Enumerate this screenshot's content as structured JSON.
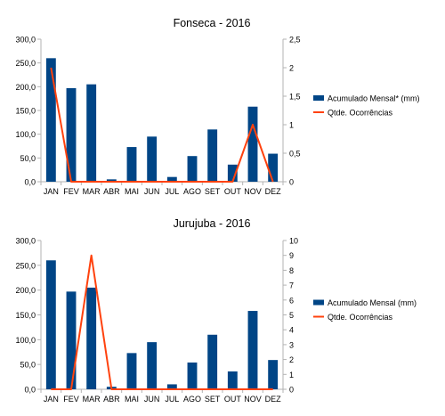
{
  "colors": {
    "bar": "#004586",
    "line": "#ff420e",
    "axis": "#b3b3b3",
    "text": "#000000"
  },
  "chart_data": [
    {
      "type": "bar",
      "title": "Fonseca - 2016",
      "categories": [
        "JAN",
        "FEV",
        "MAR",
        "ABR",
        "MAI",
        "JUN",
        "JUL",
        "AGO",
        "SET",
        "OUT",
        "NOV",
        "DEZ"
      ],
      "y_ticks": [
        "0,0",
        "50,0",
        "100,0",
        "150,0",
        "200,0",
        "250,0",
        "300,0"
      ],
      "y2_ticks": [
        "0",
        "0,5",
        "1",
        "1,5",
        "2",
        "2,5"
      ],
      "ylim": [
        0,
        300
      ],
      "y2lim": [
        0,
        2.5
      ],
      "grid": false,
      "legend_position": "right",
      "series": [
        {
          "name": "Acumulado Mensal* (mm)",
          "type": "bar",
          "axis": "left",
          "values": [
            260,
            197,
            205,
            5,
            73,
            95,
            10,
            54,
            110,
            36,
            158,
            59
          ]
        },
        {
          "name": "Qtde. Ocorrências",
          "type": "line",
          "axis": "right",
          "values": [
            2,
            0,
            0,
            0,
            0,
            0,
            0,
            0,
            0,
            0,
            1,
            0
          ]
        }
      ]
    },
    {
      "type": "bar",
      "title": "Jurujuba - 2016",
      "categories": [
        "JAN",
        "FEV",
        "MAR",
        "ABR",
        "MAI",
        "JUN",
        "JUL",
        "AGO",
        "SET",
        "OUT",
        "NOV",
        "DEZ"
      ],
      "y_ticks": [
        "0,0",
        "50,0",
        "100,0",
        "150,0",
        "200,0",
        "250,0",
        "300,0"
      ],
      "y2_ticks": [
        "0",
        "1",
        "2",
        "3",
        "4",
        "5",
        "6",
        "7",
        "8",
        "9",
        "10"
      ],
      "ylim": [
        0,
        300
      ],
      "y2lim": [
        0,
        10
      ],
      "grid": false,
      "legend_position": "right",
      "series": [
        {
          "name": "Acumulado Mensal (mm)",
          "type": "bar",
          "axis": "left",
          "values": [
            260,
            197,
            205,
            5,
            73,
            95,
            10,
            54,
            110,
            36,
            158,
            59
          ]
        },
        {
          "name": "Qtde. Ocorrências",
          "type": "line",
          "axis": "right",
          "values": [
            0,
            0,
            9,
            0,
            0,
            0,
            0,
            0,
            0,
            0,
            0,
            0
          ]
        }
      ]
    }
  ]
}
